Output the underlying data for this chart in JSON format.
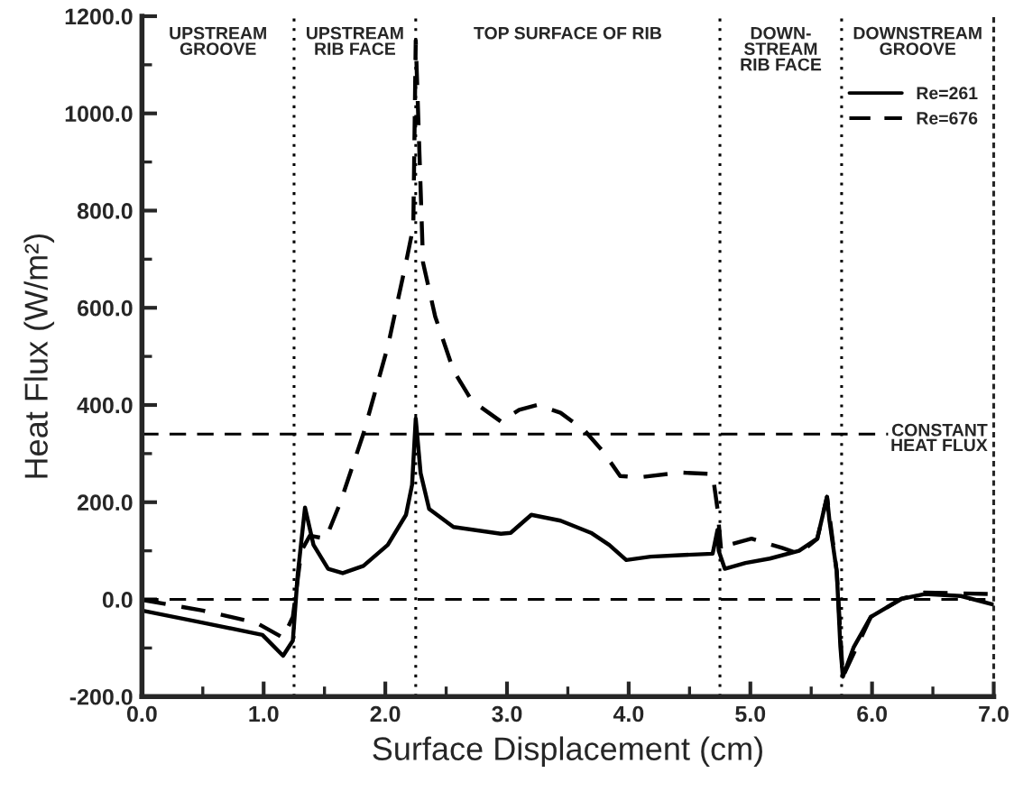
{
  "chart_data": {
    "type": "line",
    "xlabel": "Surface Displacement (cm)",
    "ylabel": "Heat Flux (W/m²)",
    "xlim": [
      0,
      7
    ],
    "ylim": [
      -200,
      1200
    ],
    "xticks": [
      {
        "value": 0,
        "label": "0.0"
      },
      {
        "value": 1,
        "label": "1.0"
      },
      {
        "value": 2,
        "label": "2.0"
      },
      {
        "value": 3,
        "label": "3.0"
      },
      {
        "value": 4,
        "label": "4.0"
      },
      {
        "value": 5,
        "label": "5.0"
      },
      {
        "value": 6,
        "label": "6.0"
      },
      {
        "value": 7,
        "label": "7.0"
      }
    ],
    "yticks": [
      {
        "value": -200,
        "label": "-200.0"
      },
      {
        "value": 0,
        "label": "0.0"
      },
      {
        "value": 200,
        "label": "200.0"
      },
      {
        "value": 400,
        "label": "400.0"
      },
      {
        "value": 600,
        "label": "600.0"
      },
      {
        "value": 800,
        "label": "800.0"
      },
      {
        "value": 1000,
        "label": "1000.0"
      },
      {
        "value": 1200,
        "label": "1200.0"
      }
    ],
    "grid": false,
    "legend": "top right",
    "marker": "none",
    "series": [
      {
        "name": "Re=261",
        "color": "#000000",
        "line_style": "solid",
        "x": [
          0,
          0.5,
          0.99,
          1.16,
          1.24,
          1.28,
          1.34,
          1.41,
          1.53,
          1.65,
          1.82,
          2.02,
          2.17,
          2.22,
          2.25,
          2.29,
          2.36,
          2.56,
          2.95,
          3.03,
          3.2,
          3.44,
          3.69,
          3.84,
          3.98,
          4.18,
          4.42,
          4.69,
          4.73,
          4.74,
          4.79,
          4.96,
          5.16,
          5.4,
          5.55,
          5.63,
          5.65,
          5.71,
          5.74,
          5.76,
          5.85,
          5.99,
          6.24,
          6.43,
          6.73,
          7.0
        ],
        "values": [
          -23,
          -48,
          -73,
          -116,
          -85,
          51,
          189,
          112,
          63,
          54,
          69,
          112,
          174,
          236,
          372,
          260,
          186,
          149,
          135,
          137,
          174,
          162,
          137,
          112,
          81,
          88,
          91,
          94,
          143,
          100,
          63,
          75,
          84,
          100,
          125,
          211,
          162,
          57,
          -98,
          -159,
          -98,
          -36,
          1,
          11,
          7,
          -11
        ]
      },
      {
        "name": "Re=676",
        "color": "#000000",
        "line_style": "dashed",
        "x": [
          0,
          0.5,
          0.94,
          1.16,
          1.24,
          1.31,
          1.38,
          1.51,
          1.63,
          1.82,
          2.02,
          2.17,
          2.23,
          2.25,
          2.31,
          2.41,
          2.56,
          2.71,
          2.95,
          3.1,
          3.25,
          3.44,
          3.64,
          3.79,
          3.93,
          4.08,
          4.42,
          4.69,
          4.73,
          4.76,
          4.82,
          5.01,
          5.26,
          5.4,
          5.55,
          5.63,
          5.71,
          5.76,
          5.99,
          6.24,
          6.43,
          7.0
        ],
        "values": [
          -1,
          -23,
          -48,
          -79,
          -36,
          100,
          131,
          125,
          199,
          341,
          520,
          693,
          767,
          1150,
          693,
          582,
          471,
          409,
          366,
          390,
          400,
          384,
          347,
          304,
          254,
          251,
          261,
          258,
          186,
          100,
          112,
          125,
          106,
          94,
          125,
          211,
          57,
          -159,
          -36,
          1,
          14,
          11
        ]
      }
    ],
    "ref_lines": [
      {
        "axis": "y",
        "value": 340,
        "label": "CONSTANT\nHEAT FLUX",
        "line_style": "dashed",
        "color": "#000000"
      },
      {
        "axis": "y",
        "value": 0,
        "label": null,
        "line_style": "dashed",
        "color": "#000000"
      },
      {
        "axis": "x",
        "value": 1.25,
        "label": null,
        "line_style": "dotted",
        "color": "#000000"
      },
      {
        "axis": "x",
        "value": 2.25,
        "label": null,
        "line_style": "dotted",
        "color": "#000000"
      },
      {
        "axis": "x",
        "value": 4.75,
        "label": null,
        "line_style": "dotted",
        "color": "#000000"
      },
      {
        "axis": "x",
        "value": 5.75,
        "label": null,
        "line_style": "dotted",
        "color": "#000000"
      }
    ],
    "annotations": [
      "UPSTREAM\nGROOVE",
      "UPSTREAM\nRIB FACE",
      "TOP SURFACE OF RIB",
      "DOWN-\nSTREAM\nRIB FACE",
      "DOWNSTREAM\nGROOVE"
    ]
  }
}
